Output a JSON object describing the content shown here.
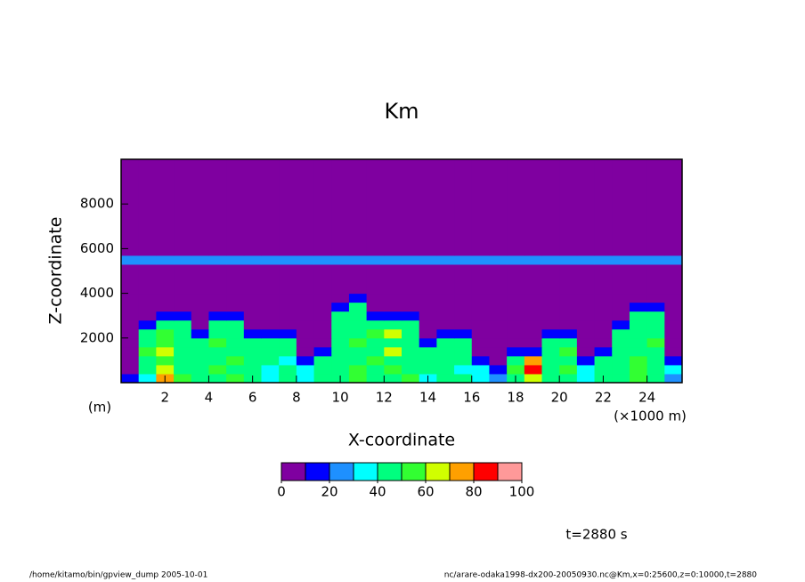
{
  "chart_data": {
    "type": "contour",
    "title": "Km",
    "xlabel": "X-coordinate",
    "xunit": "(×1000 m)",
    "ylabel": "Z-coordinate",
    "yunit": "(m)",
    "xlim": [
      0,
      25600
    ],
    "ylim": [
      0,
      10000
    ],
    "xticks": [
      {
        "value": 2000,
        "label": "2"
      },
      {
        "value": 4000,
        "label": "4"
      },
      {
        "value": 6000,
        "label": "6"
      },
      {
        "value": 8000,
        "label": "8"
      },
      {
        "value": 10000,
        "label": "10"
      },
      {
        "value": 12000,
        "label": "12"
      },
      {
        "value": 14000,
        "label": "14"
      },
      {
        "value": 16000,
        "label": "16"
      },
      {
        "value": 18000,
        "label": "18"
      },
      {
        "value": 20000,
        "label": "20"
      },
      {
        "value": 22000,
        "label": "22"
      },
      {
        "value": 24000,
        "label": "24"
      }
    ],
    "yticks": [
      2000,
      4000,
      6000,
      8000
    ],
    "x_edges": [
      0,
      800,
      1600,
      2400,
      3200,
      4000,
      4800,
      5600,
      6400,
      7200,
      8000,
      8800,
      9600,
      10400,
      11200,
      12000,
      12800,
      13600,
      14400,
      15200,
      16000,
      16800,
      17600,
      18400,
      19200,
      20000,
      20800,
      21600,
      22400,
      23200,
      24000,
      24800,
      25600
    ],
    "z_edges": [
      0,
      400,
      800,
      1200,
      1600,
      2000,
      2400,
      2800,
      3200,
      3600,
      4000,
      5300,
      5700,
      10000
    ],
    "values": [
      [
        15,
        35,
        75,
        55,
        45,
        45,
        55,
        45,
        35,
        45,
        35,
        45,
        45,
        55,
        45,
        45,
        55,
        35,
        45,
        45,
        35,
        25,
        45,
        65,
        45,
        45,
        35,
        45,
        45,
        55,
        45,
        25
      ],
      [
        5,
        45,
        65,
        45,
        45,
        55,
        45,
        45,
        35,
        45,
        35,
        45,
        45,
        55,
        45,
        55,
        45,
        45,
        45,
        35,
        35,
        15,
        55,
        85,
        45,
        55,
        35,
        45,
        45,
        55,
        45,
        35
      ],
      [
        5,
        45,
        55,
        45,
        45,
        45,
        55,
        45,
        45,
        35,
        15,
        45,
        45,
        45,
        55,
        45,
        45,
        45,
        45,
        45,
        15,
        5,
        45,
        75,
        45,
        45,
        15,
        45,
        45,
        55,
        45,
        15
      ],
      [
        5,
        55,
        65,
        45,
        45,
        45,
        45,
        45,
        45,
        45,
        5,
        15,
        45,
        45,
        45,
        65,
        45,
        45,
        45,
        45,
        5,
        5,
        15,
        15,
        45,
        55,
        5,
        15,
        45,
        45,
        45,
        5
      ],
      [
        5,
        45,
        55,
        45,
        45,
        55,
        45,
        45,
        45,
        45,
        5,
        5,
        45,
        55,
        45,
        45,
        45,
        15,
        45,
        45,
        5,
        5,
        5,
        5,
        45,
        45,
        5,
        5,
        45,
        45,
        55,
        5
      ],
      [
        5,
        45,
        55,
        45,
        15,
        45,
        45,
        15,
        15,
        15,
        5,
        5,
        45,
        45,
        55,
        65,
        45,
        5,
        15,
        15,
        5,
        5,
        5,
        5,
        15,
        15,
        5,
        5,
        45,
        45,
        45,
        5
      ],
      [
        5,
        15,
        45,
        45,
        5,
        45,
        45,
        5,
        5,
        5,
        5,
        5,
        45,
        45,
        45,
        45,
        45,
        5,
        5,
        5,
        5,
        5,
        5,
        5,
        5,
        5,
        5,
        5,
        15,
        45,
        45,
        5
      ],
      [
        5,
        5,
        15,
        15,
        5,
        15,
        15,
        5,
        5,
        5,
        5,
        5,
        45,
        45,
        15,
        15,
        15,
        5,
        5,
        5,
        5,
        5,
        5,
        5,
        5,
        5,
        5,
        5,
        5,
        45,
        45,
        5
      ],
      [
        5,
        5,
        5,
        5,
        5,
        5,
        5,
        5,
        5,
        5,
        5,
        5,
        15,
        45,
        5,
        5,
        5,
        5,
        5,
        5,
        5,
        5,
        5,
        5,
        5,
        5,
        5,
        5,
        5,
        15,
        15,
        5
      ],
      [
        5,
        5,
        5,
        5,
        5,
        5,
        5,
        5,
        5,
        5,
        5,
        5,
        5,
        15,
        5,
        5,
        5,
        5,
        5,
        5,
        5,
        5,
        5,
        5,
        5,
        5,
        5,
        5,
        5,
        5,
        5,
        5
      ],
      [
        5,
        5,
        5,
        5,
        5,
        5,
        5,
        5,
        5,
        5,
        5,
        5,
        5,
        5,
        5,
        5,
        5,
        5,
        5,
        5,
        5,
        5,
        5,
        5,
        5,
        5,
        5,
        5,
        5,
        5,
        5,
        5
      ],
      [
        25,
        25,
        25,
        25,
        25,
        25,
        25,
        25,
        25,
        25,
        25,
        25,
        25,
        25,
        25,
        25,
        25,
        25,
        25,
        25,
        25,
        25,
        25,
        25,
        25,
        25,
        25,
        25,
        25,
        25,
        25,
        25
      ],
      [
        5,
        5,
        5,
        5,
        5,
        5,
        5,
        5,
        5,
        5,
        5,
        5,
        5,
        5,
        5,
        5,
        5,
        5,
        5,
        5,
        5,
        5,
        5,
        5,
        5,
        5,
        5,
        5,
        5,
        5,
        5,
        5
      ]
    ],
    "levels": [
      0,
      10,
      20,
      30,
      40,
      50,
      60,
      70,
      80,
      90,
      100
    ],
    "colors": [
      "#7f00a0",
      "#0000ff",
      "#1e90ff",
      "#00ffff",
      "#00ff7f",
      "#32ff32",
      "#d0ff00",
      "#ffa000",
      "#ff0000",
      "#ff9999"
    ],
    "colorbar_ticks": [
      0,
      20,
      40,
      60,
      80,
      100
    ],
    "time_label": "t=2880 s",
    "footer_left": "/home/kitamo/bin/gpview_dump  2005-10-01",
    "footer_right": "nc/arare-odaka1998-dx200-20050930.nc@Km,x=0:25600,z=0:10000,t=2880"
  }
}
